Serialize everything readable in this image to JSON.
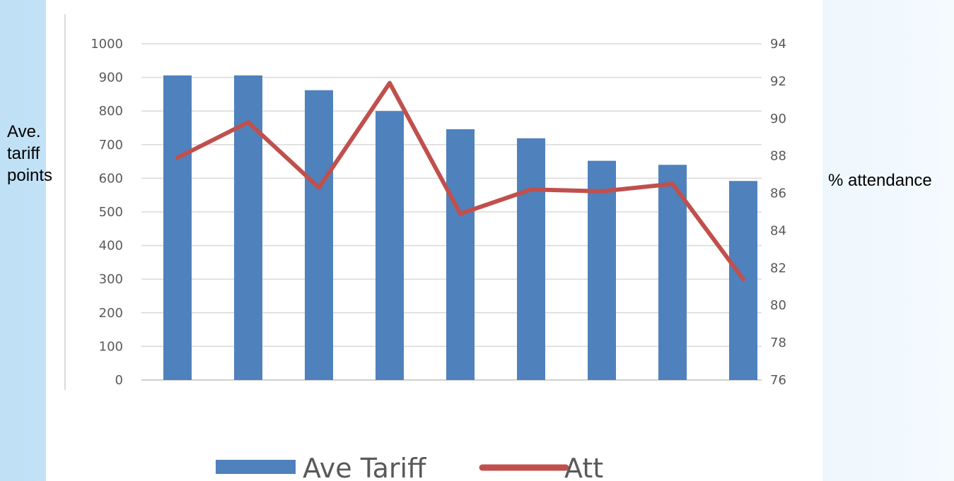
{
  "chart_data": {
    "type": "bar",
    "title": "",
    "categories": [
      "",
      "",
      "",
      "",
      "",
      "",
      "",
      "",
      ""
    ],
    "series": [
      {
        "name": "Ave Tariff",
        "type": "bar",
        "axis": "left",
        "color": "#4f81bd",
        "values": [
          906,
          906,
          862,
          800,
          746,
          719,
          652,
          640,
          592
        ]
      },
      {
        "name": "Att",
        "type": "line",
        "axis": "right",
        "color": "#c0504d",
        "values": [
          87.9,
          89.8,
          86.3,
          91.9,
          84.9,
          86.2,
          86.1,
          86.5,
          81.4
        ]
      }
    ],
    "ylabel": "Ave. tariff points",
    "ylabel_right": "% attendance",
    "ylim": [
      0,
      1000
    ],
    "ylim_right": [
      76,
      94
    ],
    "yticks": [
      "0",
      "100",
      "200",
      "300",
      "400",
      "500",
      "600",
      "700",
      "800",
      "900",
      "1000"
    ],
    "yticks_right": [
      "76",
      "78",
      "80",
      "82",
      "84",
      "86",
      "88",
      "90",
      "92",
      "94"
    ],
    "grid": true,
    "legend_position": "bottom"
  }
}
